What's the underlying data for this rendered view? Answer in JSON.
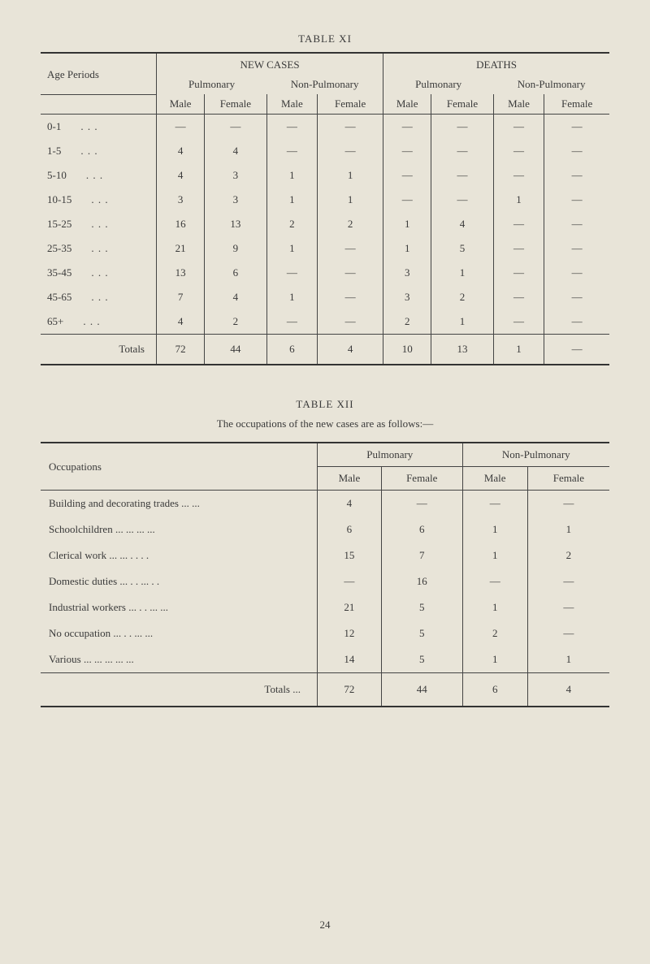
{
  "table1": {
    "title": "TABLE XI",
    "headers": {
      "age_periods": "Age Periods",
      "new_cases": "NEW CASES",
      "deaths": "DEATHS",
      "pulmonary": "Pulmonary",
      "non_pulmonary": "Non-Pulmonary",
      "male": "Male",
      "female": "Female"
    },
    "rows": [
      {
        "age": "0-1",
        "nc_pm": "—",
        "nc_pf": "—",
        "nc_nm": "—",
        "nc_nf": "—",
        "d_pm": "—",
        "d_pf": "—",
        "d_nm": "—",
        "d_nf": "—"
      },
      {
        "age": "1-5",
        "nc_pm": "4",
        "nc_pf": "4",
        "nc_nm": "—",
        "nc_nf": "—",
        "d_pm": "—",
        "d_pf": "—",
        "d_nm": "—",
        "d_nf": "—"
      },
      {
        "age": "5-10",
        "nc_pm": "4",
        "nc_pf": "3",
        "nc_nm": "1",
        "nc_nf": "1",
        "d_pm": "—",
        "d_pf": "—",
        "d_nm": "—",
        "d_nf": "—"
      },
      {
        "age": "10-15",
        "nc_pm": "3",
        "nc_pf": "3",
        "nc_nm": "1",
        "nc_nf": "1",
        "d_pm": "—",
        "d_pf": "—",
        "d_nm": "1",
        "d_nf": "—"
      },
      {
        "age": "15-25",
        "nc_pm": "16",
        "nc_pf": "13",
        "nc_nm": "2",
        "nc_nf": "2",
        "d_pm": "1",
        "d_pf": "4",
        "d_nm": "—",
        "d_nf": "—"
      },
      {
        "age": "25-35",
        "nc_pm": "21",
        "nc_pf": "9",
        "nc_nm": "1",
        "nc_nf": "—",
        "d_pm": "1",
        "d_pf": "5",
        "d_nm": "—",
        "d_nf": "—"
      },
      {
        "age": "35-45",
        "nc_pm": "13",
        "nc_pf": "6",
        "nc_nm": "—",
        "nc_nf": "—",
        "d_pm": "3",
        "d_pf": "1",
        "d_nm": "—",
        "d_nf": "—"
      },
      {
        "age": "45-65",
        "nc_pm": "7",
        "nc_pf": "4",
        "nc_nm": "1",
        "nc_nf": "—",
        "d_pm": "3",
        "d_pf": "2",
        "d_nm": "—",
        "d_nf": "—"
      },
      {
        "age": "65+",
        "nc_pm": "4",
        "nc_pf": "2",
        "nc_nm": "—",
        "nc_nf": "—",
        "d_pm": "2",
        "d_pf": "1",
        "d_nm": "—",
        "d_nf": "—"
      }
    ],
    "totals": {
      "label": "Totals",
      "nc_pm": "72",
      "nc_pf": "44",
      "nc_nm": "6",
      "nc_nf": "4",
      "d_pm": "10",
      "d_pf": "13",
      "d_nm": "1",
      "d_nf": "—"
    }
  },
  "table2": {
    "title": "TABLE XII",
    "caption": "The occupations of the new cases are as follows:—",
    "headers": {
      "occupations": "Occupations",
      "pulmonary": "Pulmonary",
      "non_pulmonary": "Non-Pulmonary",
      "male": "Male",
      "female": "Female"
    },
    "rows": [
      {
        "occ": "Building and decorating trades ...   ...",
        "pm": "4",
        "pf": "—",
        "nm": "—",
        "nf": "—"
      },
      {
        "occ": "Schoolchildren         ...   ...   ...   ...",
        "pm": "6",
        "pf": "6",
        "nm": "1",
        "nf": "1"
      },
      {
        "occ": "Clerical work          ...   ...   . .   . .",
        "pm": "15",
        "pf": "7",
        "nm": "1",
        "nf": "2"
      },
      {
        "occ": "Domestic duties      ...   . .   ...   . .",
        "pm": "—",
        "pf": "16",
        "nm": "—",
        "nf": "—"
      },
      {
        "occ": "Industrial workers ...   . .   ...   ...",
        "pm": "21",
        "pf": "5",
        "nm": "1",
        "nf": "—"
      },
      {
        "occ": "No occupation          ...   . .   ...   ...",
        "pm": "12",
        "pf": "5",
        "nm": "2",
        "nf": "—"
      },
      {
        "occ": "Various         ...   ...   ...   ...   ...",
        "pm": "14",
        "pf": "5",
        "nm": "1",
        "nf": "1"
      }
    ],
    "totals": {
      "label": "Totals     ...",
      "pm": "72",
      "pf": "44",
      "nm": "6",
      "nf": "4"
    }
  },
  "page_number": "24"
}
